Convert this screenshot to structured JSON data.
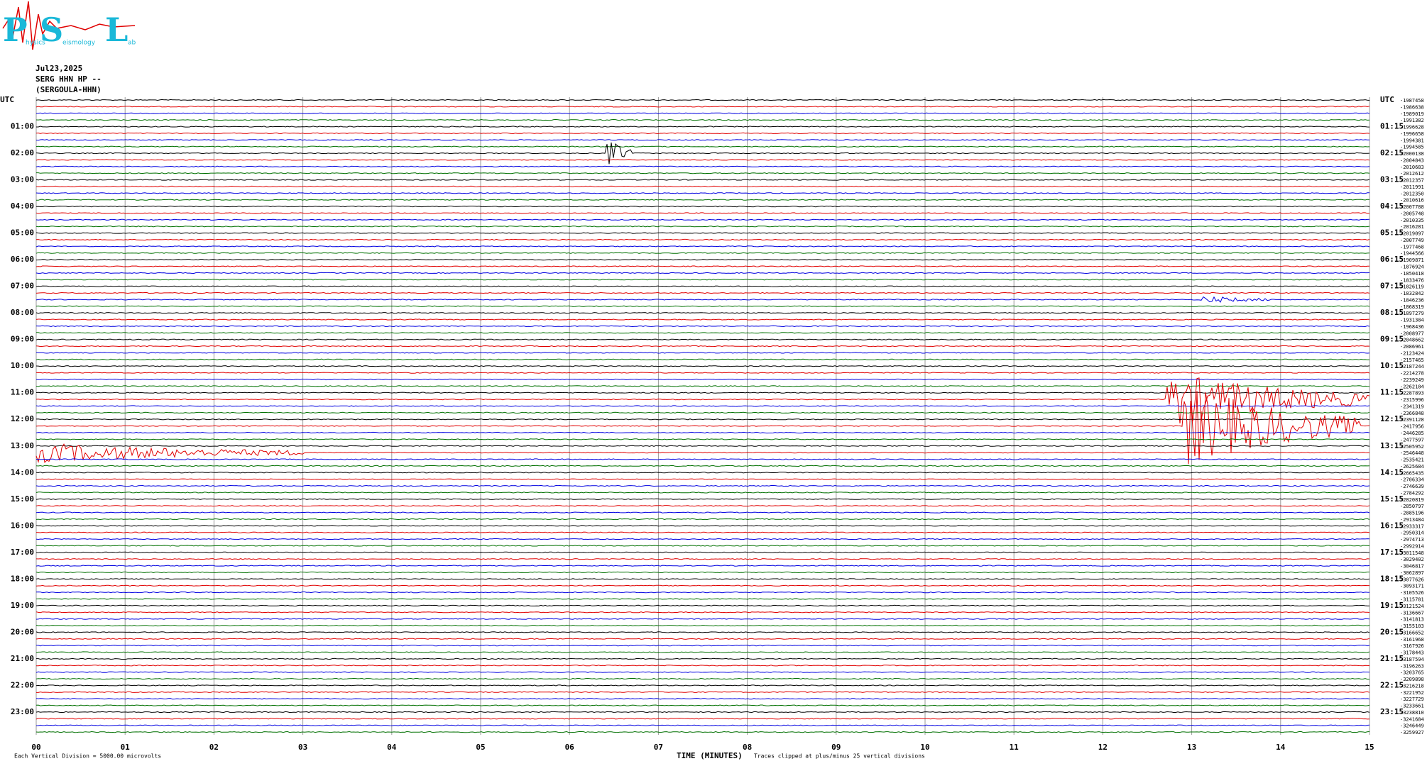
{
  "logo": {
    "letters": [
      "P",
      "S",
      "L"
    ],
    "words": [
      "hysics",
      "eismology",
      "ab"
    ]
  },
  "header": {
    "date": "Jul23,2025",
    "station": "SERG HHN HP --",
    "site": "(SERGOULA-HHN)"
  },
  "left_labels": [
    "UTC",
    "01:00",
    "02:00",
    "03:00",
    "04:00",
    "05:00",
    "06:00",
    "07:00",
    "08:00",
    "09:00",
    "10:00",
    "11:00",
    "12:00",
    "13:00",
    "14:00",
    "15:00",
    "16:00",
    "17:00",
    "18:00",
    "19:00",
    "20:00",
    "21:00",
    "22:00",
    "23:00"
  ],
  "right_labels": [
    "UTC",
    "01:15",
    "02:15",
    "03:15",
    "04:15",
    "05:15",
    "06:15",
    "07:15",
    "08:15",
    "09:15",
    "10:15",
    "11:15",
    "12:15",
    "13:15",
    "14:15",
    "15:15",
    "16:15",
    "17:15",
    "18:15",
    "19:15",
    "20:15",
    "21:15",
    "22:15",
    "23:15"
  ],
  "trace_offsets": [
    "-1987458",
    "-1986638",
    "-1989019",
    "-1991382",
    "-1996628",
    "-1996658",
    "-1994381",
    "-1994585",
    "-2000138",
    "-2004843",
    "-2010683",
    "-2012612",
    "-2012357",
    "-2011991",
    "-2012350",
    "-2010616",
    "-2007788",
    "-2005748",
    "-2010335",
    "-2016281",
    "-2019097",
    "-2007749",
    "-1977468",
    "-1944566",
    "-1909871",
    "-1876924",
    "-1850418",
    "-1833476",
    "-1826119",
    "-1832842",
    "-1846236",
    "-1868319",
    "-1897279",
    "-1931384",
    "-1968436",
    "-2008977",
    "-2048662",
    "-2086961",
    "-2123424",
    "-2157465",
    "-2187244",
    "-2214278",
    "-2239249",
    "-2262184",
    "-2287893",
    "-2315996",
    "-2341319",
    "-2366848",
    "-2391128",
    "-2417956",
    "-2446285",
    "-2477597",
    "-2505952",
    "-2546448",
    "-2535421",
    "-2625684",
    "-2665435",
    "-2706334",
    "-2746639",
    "-2784292",
    "-2820819",
    "-2850797",
    "-2885196",
    "-2913484",
    "-2933317",
    "-2950314",
    "-2974713",
    "-2992914",
    "-3011548",
    "-3029402",
    "-3046817",
    "-3062897",
    "-3077626",
    "-3093171",
    "-3105526",
    "-3115781",
    "-3121524",
    "-3136667",
    "-3141813",
    "-3155103",
    "-3166652",
    "-3161968",
    "-3167926",
    "-3178443",
    "-3187594",
    "-3196263",
    "-3203765",
    "-3209898",
    "-3216218",
    "-3221952",
    "-3227729",
    "-3233661",
    "-3238810",
    "-3241684",
    "-3246449",
    "-3259927"
  ],
  "x_ticks": [
    "00",
    "01",
    "02",
    "03",
    "04",
    "05",
    "06",
    "07",
    "08",
    "09",
    "10",
    "11",
    "12",
    "13",
    "14",
    "15"
  ],
  "footer": {
    "division": "Each Vertical Division = 5000.00 microvolts",
    "axis_title": "TIME (MINUTES)",
    "clip_note": "Traces clipped at plus/minus 25 vertical divisions"
  }
}
